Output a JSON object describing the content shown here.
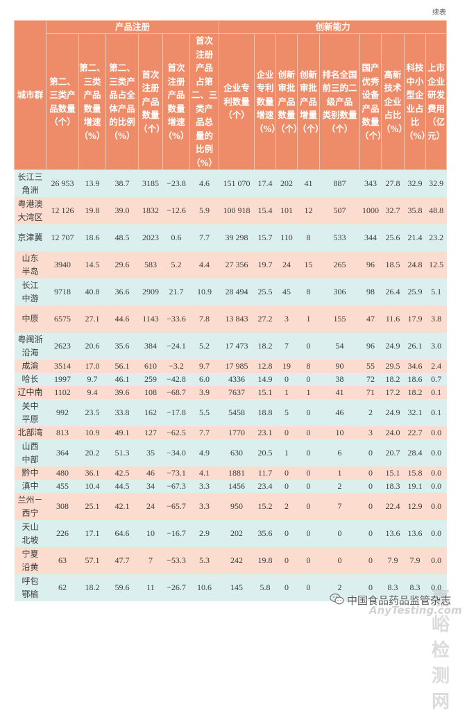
{
  "page": {
    "continued_label": "续表"
  },
  "table": {
    "city_header": "城市群",
    "groups": [
      {
        "label": "产品注册",
        "span": 6
      },
      {
        "label": "创新能力",
        "span": 9
      }
    ],
    "columns": [
      "第二、\n三类产\n品数量\n（个）",
      "第二、\n三类\n产品\n数量\n增速\n（%）",
      "第二、\n三类产\n品占全\n体产品\n的比例\n（%）",
      "首次\n注册\n产品\n数量\n（个）",
      "首次\n注册\n产品\n数量\n增速\n（%）",
      "首次\n注册\n产品\n占第\n二、三\n类产\n品总\n量的\n比例\n（%）",
      "企业专\n利数量\n（个）",
      "企业\n专利\n数量\n增速\n（%）",
      "创新\n审批\n产品\n数量\n（个）",
      "创新\n审批\n产品\n增量\n（个）",
      "排名全国\n前三的二\n级产品\n类别数量\n（个）",
      "国产\n优秀\n设备\n产品\n数量\n（个）",
      "高新\n技术\n企业\n占比\n（%）",
      "科技\n中小\n型企\n业占\n比\n（%）",
      "上市\n企业\n研发\n费用\n（亿\n元）"
    ],
    "rows": [
      {
        "city": "长江三\n角洲",
        "tall": true,
        "values": [
          "26 953",
          "13.9",
          "38.7",
          "3185",
          "−23.8",
          "4.6",
          "151 070",
          "17.4",
          "202",
          "41",
          "887",
          "343",
          "27.8",
          "32.9",
          "32.9"
        ]
      },
      {
        "city": "粤港澳\n大湾区",
        "tall": true,
        "values": [
          "12 126",
          "19.8",
          "39.0",
          "1832",
          "−12.6",
          "5.9",
          "100 918",
          "15.4",
          "101",
          "12",
          "507",
          "1000",
          "32.7",
          "35.8",
          "48.8"
        ]
      },
      {
        "city": "京津冀",
        "tall": true,
        "values": [
          "12 707",
          "18.6",
          "48.5",
          "2023",
          "0.6",
          "7.7",
          "39 298",
          "15.7",
          "110",
          "8",
          "533",
          "344",
          "25.6",
          "21.4",
          "23.2"
        ]
      },
      {
        "city": "山东\n半岛",
        "tall": true,
        "values": [
          "3940",
          "14.5",
          "29.6",
          "583",
          "5.2",
          "4.4",
          "27 356",
          "19.7",
          "24",
          "15",
          "265",
          "96",
          "18.5",
          "24.8",
          "12.5"
        ]
      },
      {
        "city": "长江\n中游",
        "tall": true,
        "values": [
          "9718",
          "40.8",
          "36.6",
          "2909",
          "21.7",
          "10.9",
          "28 494",
          "25.5",
          "45",
          "8",
          "306",
          "98",
          "26.4",
          "25.9",
          "5.1"
        ]
      },
      {
        "city": "中原",
        "tall": true,
        "values": [
          "6575",
          "27.1",
          "44.6",
          "1143",
          "−33.6",
          "7.8",
          "13 843",
          "27.2",
          "3",
          "1",
          "155",
          "47",
          "11.6",
          "17.9",
          "3.8"
        ]
      },
      {
        "city": "粤闽浙\n沿海",
        "tall": true,
        "values": [
          "2623",
          "20.6",
          "35.6",
          "384",
          "−24.1",
          "5.2",
          "17 473",
          "18.2",
          "7",
          "0",
          "54",
          "96",
          "24.9",
          "26.1",
          "3.0"
        ]
      },
      {
        "city": "成渝",
        "tall": false,
        "values": [
          "3514",
          "17.0",
          "56.1",
          "610",
          "−3.2",
          "9.7",
          "17 985",
          "12.8",
          "19",
          "8",
          "90",
          "55",
          "29.5",
          "34.6",
          "2.4"
        ]
      },
      {
        "city": "哈长",
        "tall": false,
        "values": [
          "1997",
          "9.7",
          "46.1",
          "259",
          "−42.8",
          "6.0",
          "4336",
          "14.9",
          "0",
          "0",
          "38",
          "72",
          "18.2",
          "18.6",
          "0.7"
        ]
      },
      {
        "city": "辽中南",
        "tall": false,
        "values": [
          "1102",
          "9.4",
          "39.6",
          "108",
          "−68.7",
          "3.9",
          "7637",
          "15.1",
          "1",
          "1",
          "41",
          "71",
          "17.2",
          "18.2",
          "0.1"
        ]
      },
      {
        "city": "关中\n平原",
        "tall": true,
        "values": [
          "992",
          "23.5",
          "33.8",
          "162",
          "−17.8",
          "5.5",
          "5458",
          "18.8",
          "5",
          "0",
          "46",
          "2",
          "24.9",
          "32.1",
          "0.1"
        ]
      },
      {
        "city": "北部湾",
        "tall": false,
        "values": [
          "813",
          "10.9",
          "49.1",
          "127",
          "−62.5",
          "7.7",
          "1770",
          "23.1",
          "0",
          "0",
          "10",
          "3",
          "24.0",
          "22.7",
          "0.0"
        ]
      },
      {
        "city": "山西\n中部",
        "tall": true,
        "values": [
          "364",
          "20.2",
          "51.3",
          "35",
          "−34.0",
          "4.9",
          "630",
          "20.5",
          "1",
          "0",
          "6",
          "0",
          "20.7",
          "28.4",
          "0.0"
        ]
      },
      {
        "city": "黔中",
        "tall": false,
        "values": [
          "480",
          "36.1",
          "42.5",
          "46",
          "−73.1",
          "4.1",
          "1881",
          "11.7",
          "0",
          "0",
          "1",
          "0",
          "15.1",
          "15.8",
          "0.0"
        ]
      },
      {
        "city": "滇中",
        "tall": false,
        "values": [
          "455",
          "10.4",
          "44.5",
          "34",
          "−67.3",
          "3.3",
          "1456",
          "23.4",
          "0",
          "0",
          "2",
          "0",
          "18.3",
          "19.1",
          "0.0"
        ]
      },
      {
        "city": "兰州－\n西宁",
        "tall": true,
        "values": [
          "308",
          "25.1",
          "42.1",
          "24",
          "−65.7",
          "3.3",
          "950",
          "15.2",
          "2",
          "0",
          "7",
          "0",
          "22.4",
          "12.9",
          "0.0"
        ]
      },
      {
        "city": "天山\n北坡",
        "tall": true,
        "values": [
          "226",
          "17.1",
          "64.6",
          "10",
          "−16.7",
          "2.9",
          "202",
          "35.6",
          "0",
          "0",
          "0",
          "0",
          "13.6",
          "13.6",
          "0.0"
        ]
      },
      {
        "city": "宁夏\n沿黄",
        "tall": true,
        "values": [
          "63",
          "57.1",
          "47.7",
          "7",
          "−53.3",
          "5.3",
          "242",
          "19.8",
          "0",
          "0",
          "0",
          "0",
          "7.9",
          "7.9",
          "0.0"
        ]
      },
      {
        "city": "呼包\n鄂榆",
        "tall": true,
        "values": [
          "62",
          "18.2",
          "59.6",
          "11",
          "−26.7",
          "10.6",
          "145",
          "5.8",
          "0",
          "0",
          "2",
          "0",
          "8.3",
          "8.3",
          "0.0"
        ]
      }
    ]
  },
  "watermark": {
    "site": "嘉峪检测网",
    "name": "中国食品药品监管杂志",
    "url": "AnyTesting.com",
    "icon": "wechat-icon"
  },
  "colors": {
    "header_bg": "#ee8c6a",
    "row_even_bg": "#dcefef",
    "row_odd_bg": "#fbdccf",
    "text": "#3a3a3a"
  }
}
